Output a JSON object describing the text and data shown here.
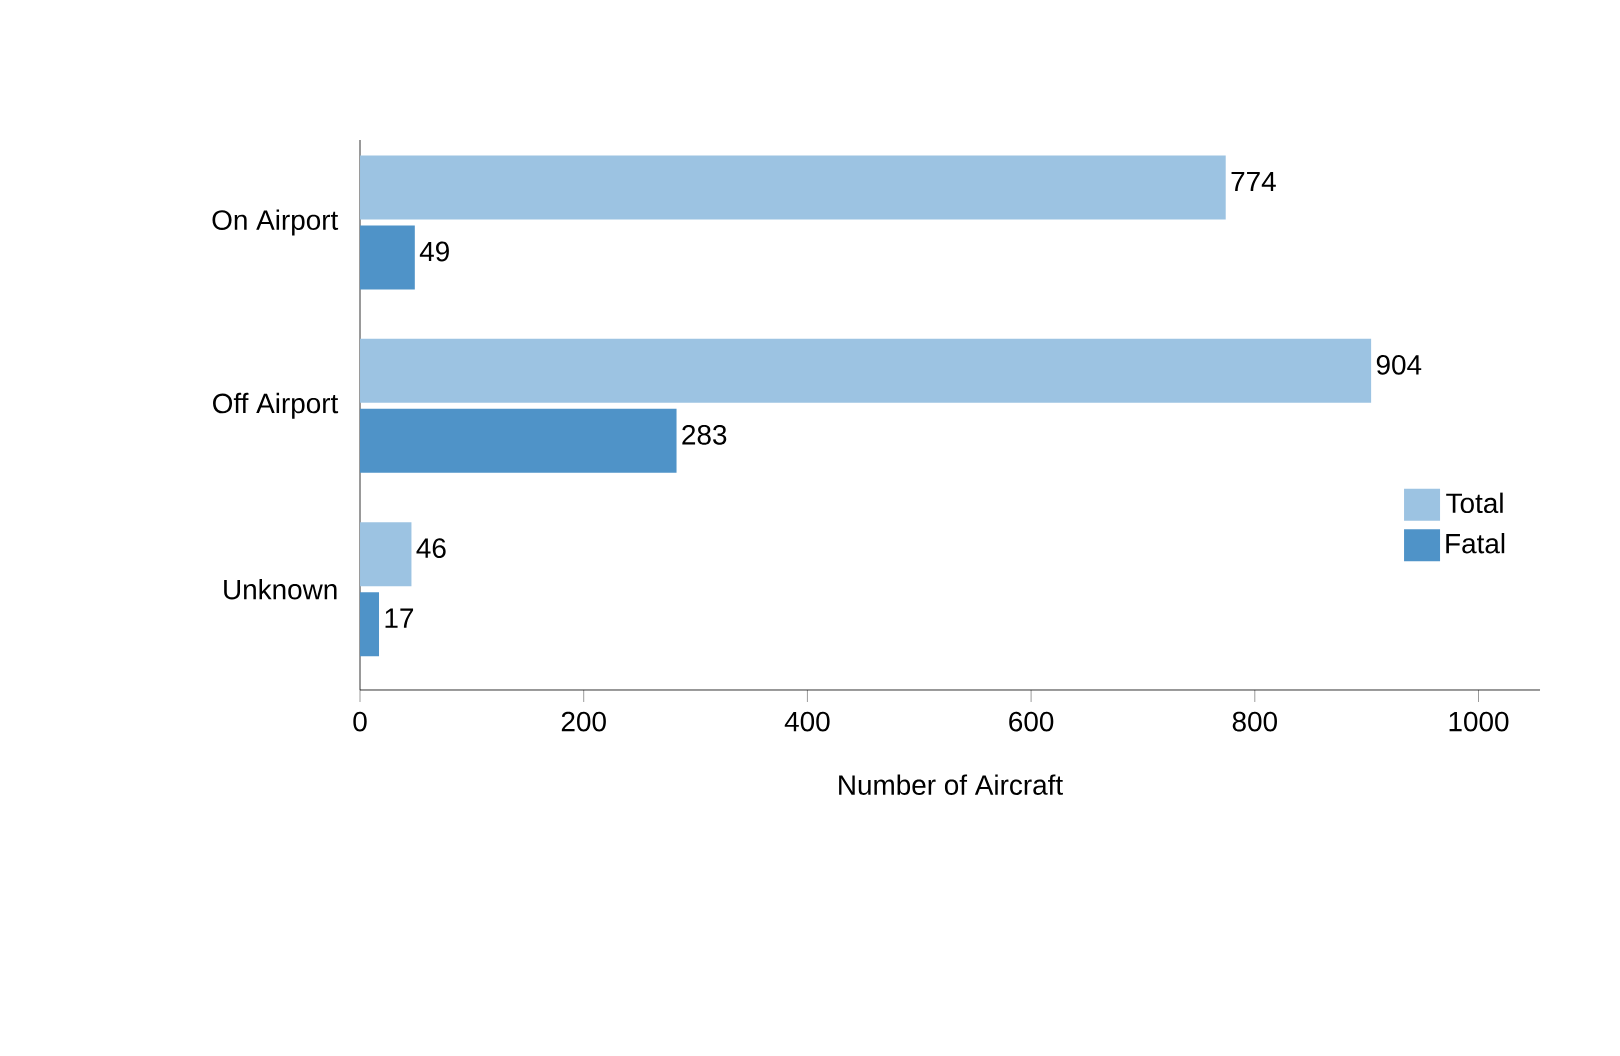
{
  "chart_data": {
    "type": "bar",
    "orientation": "horizontal",
    "xlabel": "Number of Aircraft",
    "categories": [
      "On Airport",
      "Off Airport",
      "Unknown"
    ],
    "series": [
      {
        "name": "Total",
        "color": "#9cc3e2",
        "values": [
          774,
          904,
          46
        ]
      },
      {
        "name": "Fatal",
        "color": "#4f93c8",
        "values": [
          49,
          283,
          17
        ]
      }
    ],
    "xlim": [
      0,
      1055
    ],
    "xticks": [
      0,
      200,
      400,
      600,
      800,
      1000
    ],
    "data_labels": true,
    "legend": "right",
    "grid": false
  }
}
